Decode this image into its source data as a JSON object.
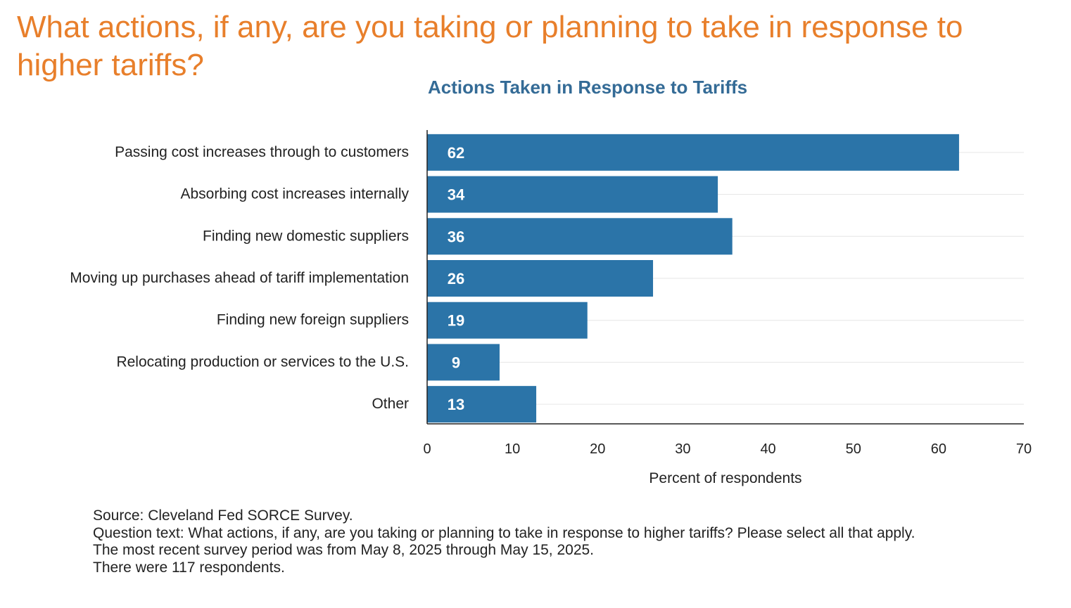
{
  "page": {
    "title": "What actions, if any, are you taking or planning to take in response to higher tariffs?"
  },
  "chart_data": {
    "type": "bar",
    "orientation": "horizontal",
    "title": "Actions Taken in Response to Tariffs",
    "categories": [
      "Passing cost increases through to customers",
      "Absorbing cost increases internally",
      "Finding new domestic suppliers",
      "Moving up purchases ahead of tariff implementation",
      "Finding new foreign suppliers",
      "Relocating production or services to the U.S.",
      "Other"
    ],
    "values": [
      62.4,
      34.1,
      35.8,
      26.5,
      18.8,
      8.5,
      12.8
    ],
    "data_labels": [
      "62",
      "34",
      "36",
      "26",
      "19",
      "9",
      "13"
    ],
    "xlabel": "Percent of respondents",
    "ylabel": "",
    "xlim": [
      0,
      70
    ],
    "xticks": [
      0,
      10,
      20,
      30,
      40,
      50,
      60,
      70
    ],
    "grid": true,
    "bar_color": "#2b74a8",
    "grid_color": "#e6e6e6",
    "axis_color": "#222222"
  },
  "notes": {
    "source": "Source: Cleveland Fed SORCE Survey.",
    "question": "Question text: What actions, if any, are you taking or planning to take in response to higher tariffs? Please select all that apply.",
    "period": "The most recent survey period was from May 8, 2025 through May 15, 2025.",
    "respondents": "There were 117 respondents."
  },
  "colors": {
    "title": "#e87f2b",
    "chart_title": "#346b96"
  }
}
